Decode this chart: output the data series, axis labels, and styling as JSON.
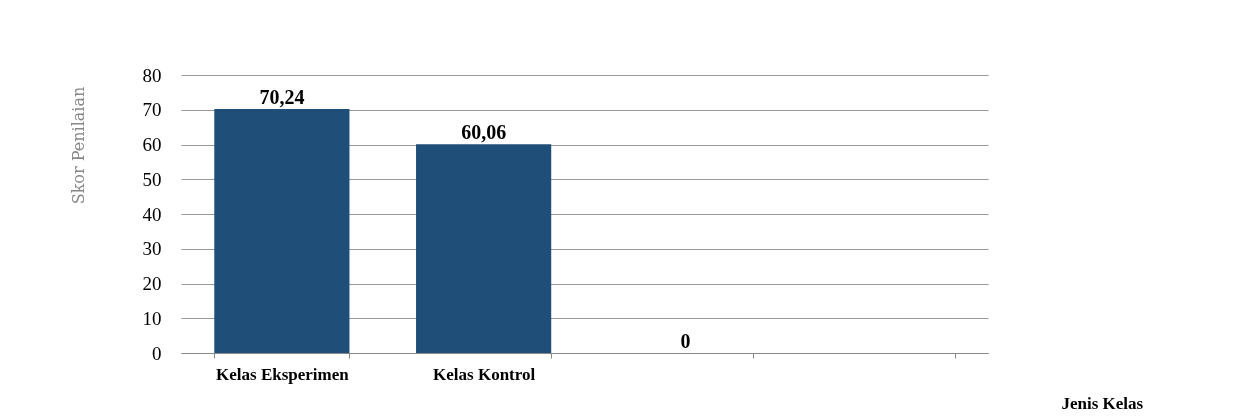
{
  "chart_data": {
    "type": "bar",
    "xlabel": "Jenis Kelas",
    "ylabel": "Skor Penilaian",
    "categories": [
      "Kelas Eksperimen",
      "Kelas Kontrol",
      null,
      null
    ],
    "values": [
      70.24,
      60.06,
      0,
      null
    ],
    "value_labels": [
      "70,24",
      "60,06",
      "0",
      null
    ],
    "color": "#1f4e79",
    "ylim": [
      0,
      80
    ],
    "yticks": [
      0,
      10,
      20,
      30,
      40,
      50,
      60,
      70,
      80
    ],
    "grid": "y"
  }
}
